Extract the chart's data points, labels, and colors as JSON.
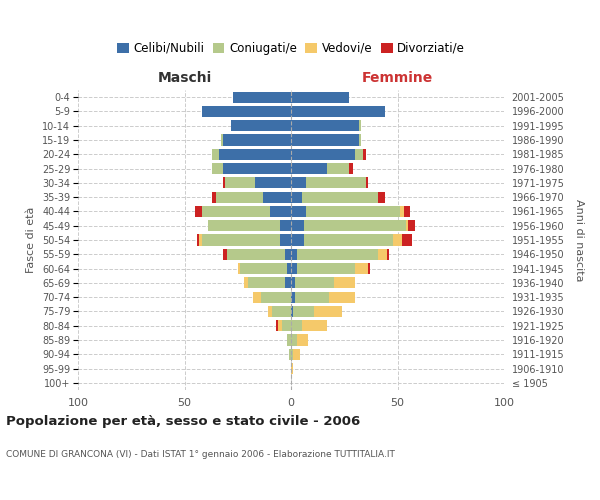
{
  "age_groups": [
    "100+",
    "95-99",
    "90-94",
    "85-89",
    "80-84",
    "75-79",
    "70-74",
    "65-69",
    "60-64",
    "55-59",
    "50-54",
    "45-49",
    "40-44",
    "35-39",
    "30-34",
    "25-29",
    "20-24",
    "15-19",
    "10-14",
    "5-9",
    "0-4"
  ],
  "birth_years": [
    "≤ 1905",
    "1906-1910",
    "1911-1915",
    "1916-1920",
    "1921-1925",
    "1926-1930",
    "1931-1935",
    "1936-1940",
    "1941-1945",
    "1946-1950",
    "1951-1955",
    "1956-1960",
    "1961-1965",
    "1966-1970",
    "1971-1975",
    "1976-1980",
    "1981-1985",
    "1986-1990",
    "1991-1995",
    "1996-2000",
    "2001-2005"
  ],
  "colors": {
    "celibi": "#3d6fa8",
    "coniugati": "#b5c98b",
    "vedovi": "#f5c96a",
    "divorziati": "#cc2222"
  },
  "males": {
    "celibi": [
      0,
      0,
      0,
      0,
      0,
      0,
      0,
      3,
      2,
      3,
      5,
      5,
      10,
      13,
      17,
      32,
      34,
      32,
      28,
      42,
      27
    ],
    "coniugati": [
      0,
      0,
      1,
      2,
      4,
      9,
      14,
      17,
      22,
      27,
      37,
      34,
      32,
      22,
      14,
      5,
      3,
      1,
      0,
      0,
      0
    ],
    "vedovi": [
      0,
      0,
      0,
      0,
      2,
      2,
      4,
      2,
      1,
      0,
      1,
      0,
      0,
      0,
      0,
      0,
      0,
      0,
      0,
      0,
      0
    ],
    "divorziati": [
      0,
      0,
      0,
      0,
      1,
      0,
      0,
      0,
      0,
      2,
      1,
      0,
      3,
      2,
      1,
      0,
      0,
      0,
      0,
      0,
      0
    ]
  },
  "females": {
    "celibi": [
      0,
      0,
      0,
      0,
      0,
      1,
      2,
      2,
      3,
      3,
      6,
      6,
      7,
      5,
      7,
      17,
      30,
      32,
      32,
      44,
      27
    ],
    "coniugati": [
      0,
      0,
      1,
      3,
      5,
      10,
      16,
      18,
      27,
      38,
      42,
      48,
      44,
      36,
      28,
      10,
      4,
      1,
      1,
      0,
      0
    ],
    "vedovi": [
      0,
      1,
      3,
      5,
      12,
      13,
      12,
      10,
      6,
      4,
      4,
      1,
      2,
      0,
      0,
      0,
      0,
      0,
      0,
      0,
      0
    ],
    "divorziati": [
      0,
      0,
      0,
      0,
      0,
      0,
      0,
      0,
      1,
      1,
      5,
      3,
      3,
      3,
      1,
      2,
      1,
      0,
      0,
      0,
      0
    ]
  },
  "title": "Popolazione per età, sesso e stato civile - 2006",
  "subtitle": "COMUNE DI GRANCONA (VI) - Dati ISTAT 1° gennaio 2006 - Elaborazione TUTTITALIA.IT",
  "xlabel_left": "Maschi",
  "xlabel_right": "Femmine",
  "ylabel_left": "Fasce di età",
  "ylabel_right": "Anni di nascita",
  "xlim": 100,
  "legend_labels": [
    "Celibi/Nubili",
    "Coniugati/e",
    "Vedovi/e",
    "Divorziati/e"
  ],
  "background_color": "#ffffff",
  "grid_color": "#cccccc"
}
